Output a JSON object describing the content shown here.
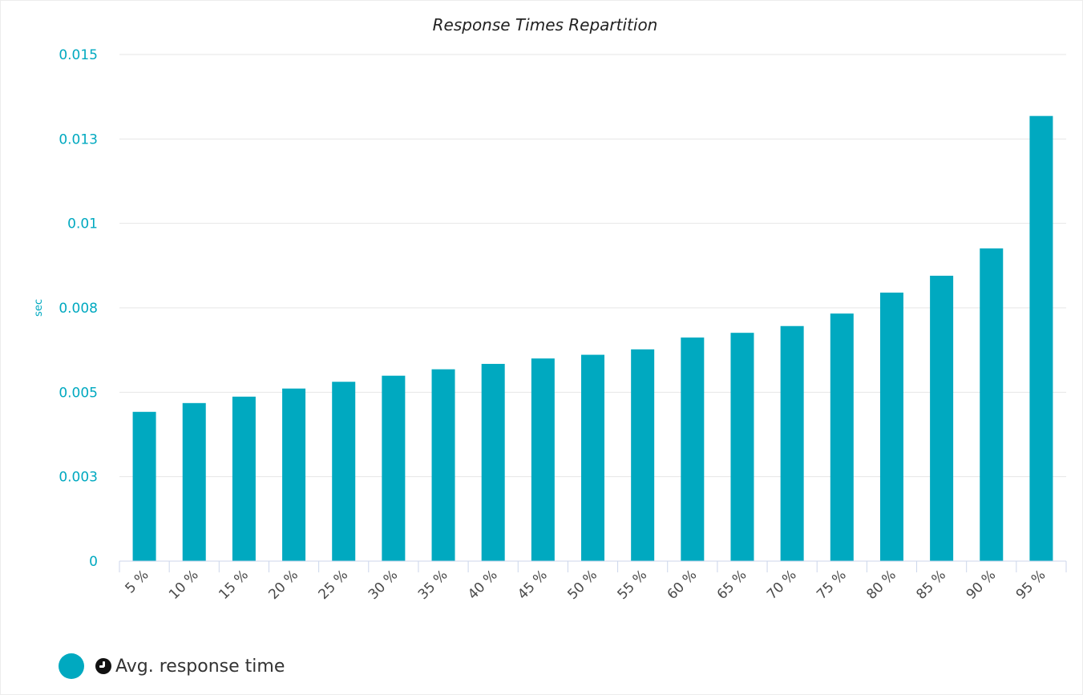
{
  "colors": {
    "bar": "#00a9c0",
    "axis_text": "#00a9c0",
    "grid": "#e6e6e6",
    "axis_line": "#ccd6eb"
  },
  "chart_data": {
    "type": "bar",
    "title": "Response Times Repartition",
    "xlabel": "",
    "ylabel": "sec",
    "ylim": [
      0,
      0.015
    ],
    "y_ticks": [
      "0",
      "0.003",
      "0.005",
      "0.008",
      "0.01",
      "0.013",
      "0.015"
    ],
    "grid": true,
    "legend_position": "bottom-left",
    "categories": [
      "5 %",
      "10 %",
      "15 %",
      "20 %",
      "25 %",
      "30 %",
      "35 %",
      "40 %",
      "45 %",
      "50 %",
      "55 %",
      "60 %",
      "65 %",
      "70 %",
      "75 %",
      "80 %",
      "85 %",
      "90 %",
      "95 %"
    ],
    "series": [
      {
        "name": "Avg. response time",
        "color": "#00a9c0",
        "values": [
          0.00442,
          0.00468,
          0.00487,
          0.00511,
          0.00531,
          0.00549,
          0.00568,
          0.00584,
          0.006,
          0.00611,
          0.00627,
          0.00662,
          0.00676,
          0.00696,
          0.00733,
          0.00795,
          0.00845,
          0.00926,
          0.01318
        ]
      }
    ]
  },
  "legend": {
    "label": "Avg. response time",
    "icon": "clock-icon"
  }
}
